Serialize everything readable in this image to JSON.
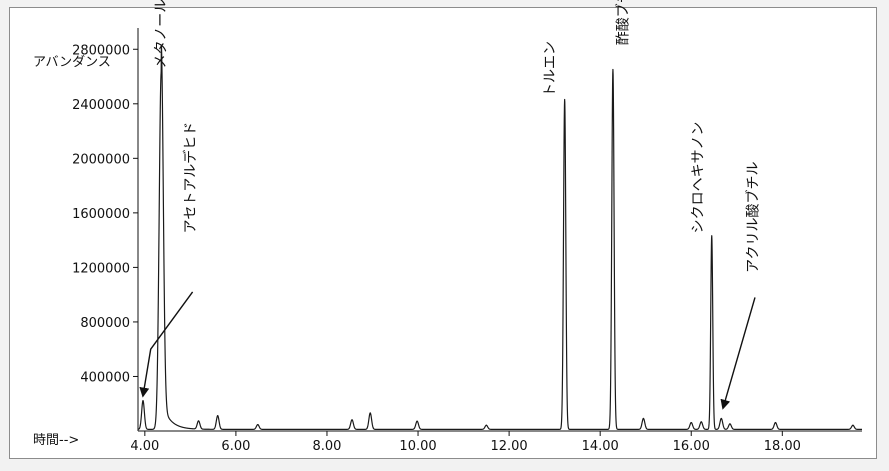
{
  "chart_data": {
    "type": "line",
    "ylabel": "アバンダンス",
    "xlabel": "時間-->",
    "xlim": [
      3.85,
      19.75
    ],
    "ylim": [
      0,
      3000000
    ],
    "x_ticks": [
      4.0,
      6.0,
      8.0,
      10.0,
      12.0,
      14.0,
      16.0,
      18.0
    ],
    "x_tick_labels": [
      "4.00",
      "6.00",
      "8.00",
      "10.00",
      "12.00",
      "14.00",
      "16.00",
      "18.00"
    ],
    "y_ticks": [
      400000,
      800000,
      1200000,
      1600000,
      2000000,
      2400000,
      2800000
    ],
    "y_tick_labels": [
      "400000",
      "800000",
      "1200000",
      "1600000",
      "2000000",
      "2400000",
      "2800000"
    ],
    "line_color": "#1a1a1a",
    "peaks": [
      {
        "x": 3.96,
        "y": 210000
      },
      {
        "x": 4.36,
        "y": 2620000,
        "width": 0.045,
        "tail": true
      },
      {
        "x": 5.18,
        "y": 60000
      },
      {
        "x": 5.6,
        "y": 100000
      },
      {
        "x": 6.48,
        "y": 35000
      },
      {
        "x": 8.55,
        "y": 70000
      },
      {
        "x": 8.95,
        "y": 120000
      },
      {
        "x": 9.98,
        "y": 60000
      },
      {
        "x": 11.5,
        "y": 30000
      },
      {
        "x": 13.22,
        "y": 2420000,
        "width": 0.025
      },
      {
        "x": 14.28,
        "y": 2640000,
        "width": 0.025
      },
      {
        "x": 14.95,
        "y": 80000
      },
      {
        "x": 16.0,
        "y": 50000
      },
      {
        "x": 16.22,
        "y": 55000
      },
      {
        "x": 16.45,
        "y": 1420000,
        "width": 0.022
      },
      {
        "x": 16.66,
        "y": 80000
      },
      {
        "x": 16.85,
        "y": 40000
      },
      {
        "x": 17.85,
        "y": 50000
      },
      {
        "x": 19.55,
        "y": 30000
      }
    ],
    "annotations": [
      {
        "label": "メタノール",
        "x": 4.45,
        "y": 2660000,
        "arrow": false
      },
      {
        "label": "アセトアルデヒド",
        "x": 5.1,
        "y": 1450000,
        "arrow": true,
        "arrow_from": {
          "x": 5.05,
          "y": 1020000
        },
        "arrow_via": {
          "x": 4.13,
          "y": 600000
        },
        "arrow_to": {
          "x": 3.96,
          "y": 260000
        }
      },
      {
        "label": "トルエン",
        "x": 13.0,
        "y": 2450000,
        "arrow": false
      },
      {
        "label": "酢酸ブチル",
        "x": 14.6,
        "y": 2830000,
        "arrow": false
      },
      {
        "label": "シクロヘキサノン",
        "x": 16.25,
        "y": 1450000,
        "arrow": false
      },
      {
        "label": "アクリル酸ブチル",
        "x": 17.45,
        "y": 1160000,
        "arrow": true,
        "arrow_from": {
          "x": 17.4,
          "y": 980000
        },
        "arrow_to": {
          "x": 16.7,
          "y": 170000
        }
      }
    ]
  }
}
